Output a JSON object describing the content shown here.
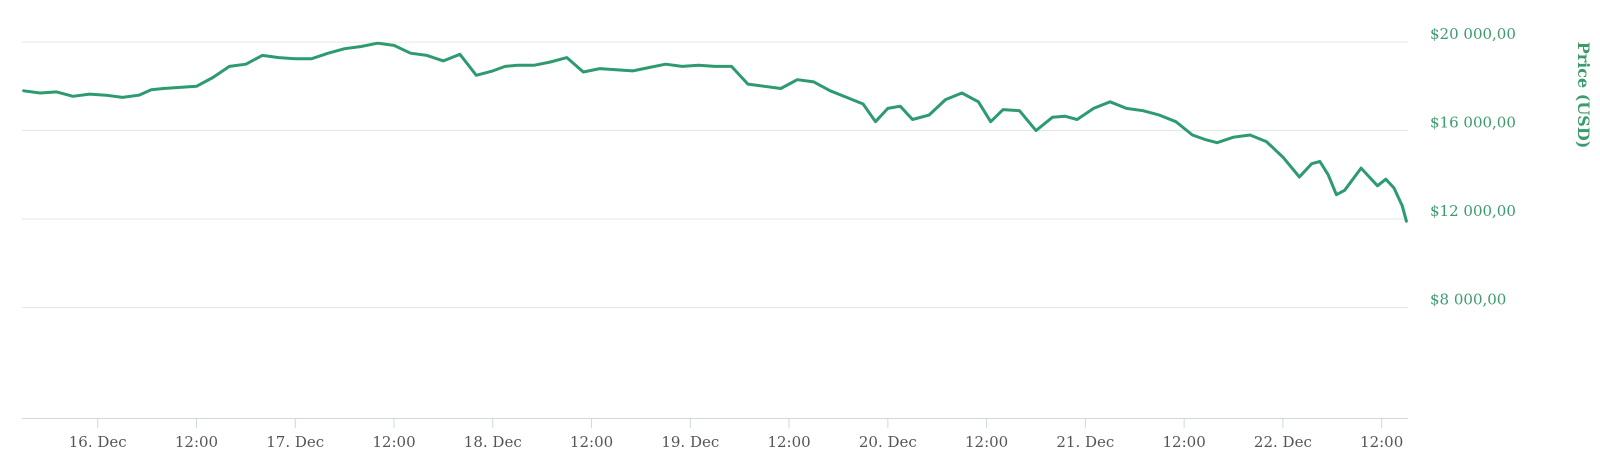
{
  "chart_data": {
    "type": "line",
    "ylabel": "Price (USD)",
    "yticks": [
      "$8 000,00",
      "$12 000,00",
      "$16 000,00",
      "$20 000,00"
    ],
    "yticks_values": [
      8000,
      12000,
      16000,
      20000
    ],
    "ylim": [
      3000,
      21000
    ],
    "xticks": [
      "16. Dec",
      "12:00",
      "17. Dec",
      "12:00",
      "18. Dec",
      "12:00",
      "19. Dec",
      "12:00",
      "20. Dec",
      "12:00",
      "21. Dec",
      "12:00",
      "22. Dec",
      "12:00"
    ],
    "xticks_hours": [
      24,
      36,
      48,
      60,
      72,
      84,
      96,
      108,
      120,
      132,
      144,
      156,
      168,
      180
    ],
    "x_unit": "hours since 15. Dec 00:00",
    "xlim": [
      14.8,
      183.2
    ],
    "grid": true,
    "legend": "none",
    "color": "#2e9a6f",
    "series": [
      {
        "name": "",
        "x": [
          15.0,
          17.0,
          19.0,
          21.0,
          23.0,
          25.0,
          27.0,
          29.0,
          30.5,
          32.0,
          34.0,
          36.0,
          38.0,
          40.0,
          42.0,
          44.0,
          46.0,
          48.0,
          50.0,
          52.0,
          54.0,
          56.0,
          58.0,
          60.0,
          62.0,
          64.0,
          66.0,
          68.0,
          70.0,
          72.0,
          73.5,
          75.0,
          77.0,
          79.0,
          81.0,
          83.0,
          85.0,
          87.0,
          89.0,
          91.0,
          93.0,
          95.0,
          97.0,
          99.0,
          101.0,
          103.0,
          105.0,
          107.0,
          109.0,
          111.0,
          113.0,
          115.0,
          117.0,
          118.5,
          120.0,
          121.5,
          123.0,
          125.0,
          127.0,
          129.0,
          131.0,
          132.5,
          134.0,
          136.0,
          138.0,
          140.0,
          141.5,
          143.0,
          145.0,
          147.0,
          149.0,
          151.0,
          153.0,
          155.0,
          157.0,
          158.5,
          160.0,
          162.0,
          164.0,
          166.0,
          168.0,
          170.0,
          171.5,
          172.5,
          173.5,
          174.5,
          175.5,
          176.5,
          177.5,
          178.5,
          179.5,
          180.5,
          181.5,
          182.5,
          183.0
        ],
        "values": [
          17800,
          17700,
          17750,
          17550,
          17650,
          17600,
          17500,
          17600,
          17850,
          17900,
          17950,
          18000,
          18400,
          18900,
          19000,
          19400,
          19300,
          19250,
          19250,
          19500,
          19700,
          19800,
          19950,
          19850,
          19500,
          19400,
          19150,
          19450,
          18500,
          18700,
          18900,
          18950,
          18950,
          19100,
          19300,
          18650,
          18800,
          18750,
          18700,
          18850,
          19000,
          18900,
          18950,
          18900,
          18900,
          18100,
          18000,
          17900,
          18300,
          18200,
          17800,
          17500,
          17200,
          16400,
          17000,
          17100,
          16500,
          16700,
          17400,
          17700,
          17300,
          16400,
          16950,
          16900,
          16000,
          16600,
          16650,
          16500,
          17000,
          17300,
          17000,
          16900,
          16700,
          16400,
          15800,
          15600,
          15450,
          15700,
          15800,
          15500,
          14800,
          13900,
          14500,
          14600,
          14000,
          13100,
          13300,
          13800,
          14300,
          13900,
          13500,
          13800,
          13400,
          12600,
          11900
        ]
      }
    ]
  }
}
